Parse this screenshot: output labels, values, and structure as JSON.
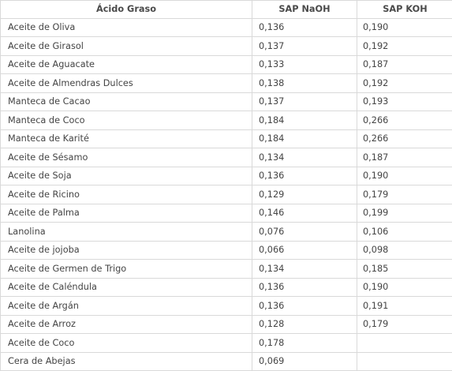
{
  "table": {
    "headers": [
      "Ácido Graso",
      "SAP NaOH",
      "SAP KOH"
    ],
    "rows": [
      [
        "Aceite de Oliva",
        "0,136",
        "0,190"
      ],
      [
        "Aceite de Girasol",
        "0,137",
        "0,192"
      ],
      [
        "Aceite de Aguacate",
        "0,133",
        "0,187"
      ],
      [
        "Aceite de Almendras Dulces",
        "0,138",
        "0,192"
      ],
      [
        "Manteca de Cacao",
        "0,137",
        "0,193"
      ],
      [
        "Manteca de Coco",
        "0,184",
        "0,266"
      ],
      [
        "Manteca de Karité",
        "0,184",
        "0,266"
      ],
      [
        "Aceite de Sésamo",
        "0,134",
        "0,187"
      ],
      [
        "Aceite de Soja",
        "0,136",
        "0,190"
      ],
      [
        "Aceite de Ricino",
        "0,129",
        "0,179"
      ],
      [
        "Aceite de Palma",
        "0,146",
        "0,199"
      ],
      [
        "Lanolina",
        "0,076",
        "0,106"
      ],
      [
        "Aceite de jojoba",
        "0,066",
        "0,098"
      ],
      [
        "Aceite de Germen de Trigo",
        "0,134",
        "0,185"
      ],
      [
        "Aceite de Caléndula",
        "0,136",
        "0,190"
      ],
      [
        "Aceite de Argán",
        "0,136",
        "0,191"
      ],
      [
        "Aceite de Arroz",
        "0,128",
        "0,179"
      ],
      [
        "Aceite de Coco",
        "0,178",
        ""
      ],
      [
        "Cera de Abejas",
        "0,069",
        ""
      ]
    ]
  }
}
